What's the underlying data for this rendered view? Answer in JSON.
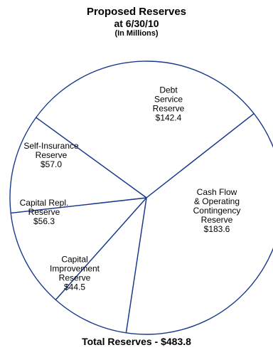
{
  "chart_data": {
    "type": "pie",
    "title": "Proposed Reserves",
    "subtitle": "at 6/30/10",
    "units": "(In Millions)",
    "slices": [
      {
        "label": "Debt Service Reserve",
        "label_lines": [
          "Debt",
          "Service",
          "Reserve",
          "$142.4"
        ],
        "value": 142.4
      },
      {
        "label": "Cash Flow & Operating Contingency Reserve",
        "label_lines": [
          "Cash Flow",
          "& Operating",
          "Contingency",
          "Reserve",
          "$183.6"
        ],
        "value": 183.6
      },
      {
        "label": "Capital Improvement Reserve",
        "label_lines": [
          "Capital",
          "Improvement",
          "Reserve",
          "$44.5"
        ],
        "value": 44.5
      },
      {
        "label": "Capital Repl. Reserve",
        "label_lines": [
          "Capital Repl.",
          "Reserve",
          "$56.3"
        ],
        "value": 56.3
      },
      {
        "label": "Self-Insurance Reserve",
        "label_lines": [
          "Self-Insurance",
          "Reserve",
          "$57.0"
        ],
        "value": 57.0
      }
    ],
    "footer": "Total Reserves - $483.8"
  }
}
